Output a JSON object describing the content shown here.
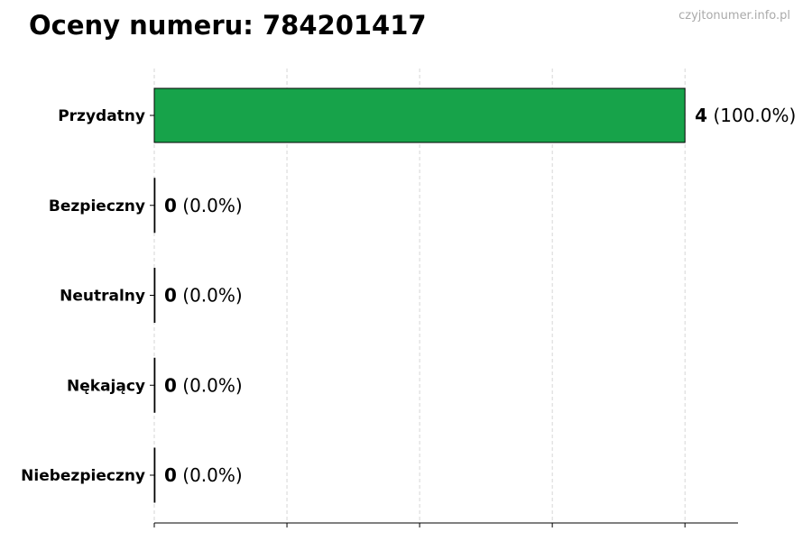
{
  "watermark": "czyjtonumer.info.pl",
  "chart_data": {
    "type": "bar",
    "orientation": "horizontal",
    "title": "Oceny numeru: 784201417",
    "categories": [
      "Przydatny",
      "Bezpieczny",
      "Neutralny",
      "Nękający",
      "Niebezpieczny"
    ],
    "values": [
      4,
      0,
      0,
      0,
      0
    ],
    "percent_labels": [
      "(100.0%)",
      "(0.0%)",
      "(0.0%)",
      "(0.0%)",
      "(0.0%)"
    ],
    "xlim": [
      0,
      4.4
    ],
    "x_gridlines": [
      0,
      1,
      2,
      3,
      4
    ],
    "grid": true,
    "xlabel": "",
    "ylabel": "",
    "bar_color": "#17a34a"
  }
}
